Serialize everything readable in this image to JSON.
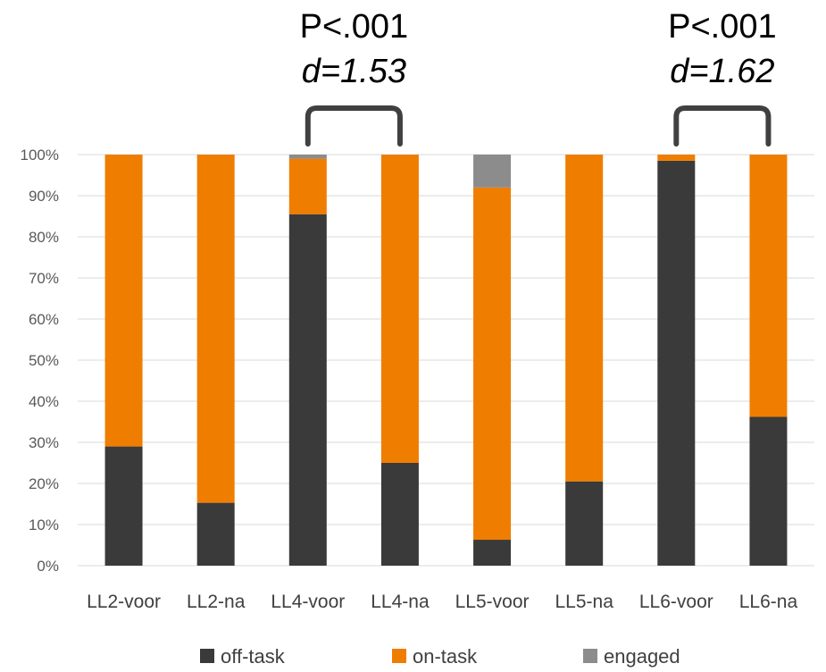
{
  "chart_data": {
    "type": "bar",
    "stacked": true,
    "categories": [
      "LL2-voor",
      "LL2-na",
      "LL4-voor",
      "LL4-na",
      "LL5-voor",
      "LL5-na",
      "LL6-voor",
      "LL6-na"
    ],
    "series": [
      {
        "name": "off-task",
        "color": "#3a3a3a",
        "values": [
          29,
          15.3,
          85.5,
          25,
          6.3,
          20.5,
          98.5,
          36.2
        ]
      },
      {
        "name": "on-task",
        "color": "#ef7d00",
        "values": [
          71,
          84.7,
          13.5,
          75,
          85.7,
          79.5,
          1.5,
          63.8
        ]
      },
      {
        "name": "engaged",
        "color": "#8c8c8c",
        "values": [
          0,
          0,
          1,
          0,
          8,
          0,
          0,
          0
        ]
      }
    ],
    "ylim": [
      0,
      100
    ],
    "yticks": [
      "0%",
      "10%",
      "20%",
      "30%",
      "40%",
      "50%",
      "60%",
      "70%",
      "80%",
      "90%",
      "100%"
    ],
    "grid": true,
    "legend_position": "bottom",
    "annotations": [
      {
        "from": "LL4-voor",
        "to": "LL4-na",
        "p_text": "P<.001",
        "d_text": "d=1.53"
      },
      {
        "from": "LL6-voor",
        "to": "LL6-na",
        "p_text": "P<.001",
        "d_text": "d=1.62"
      }
    ]
  }
}
